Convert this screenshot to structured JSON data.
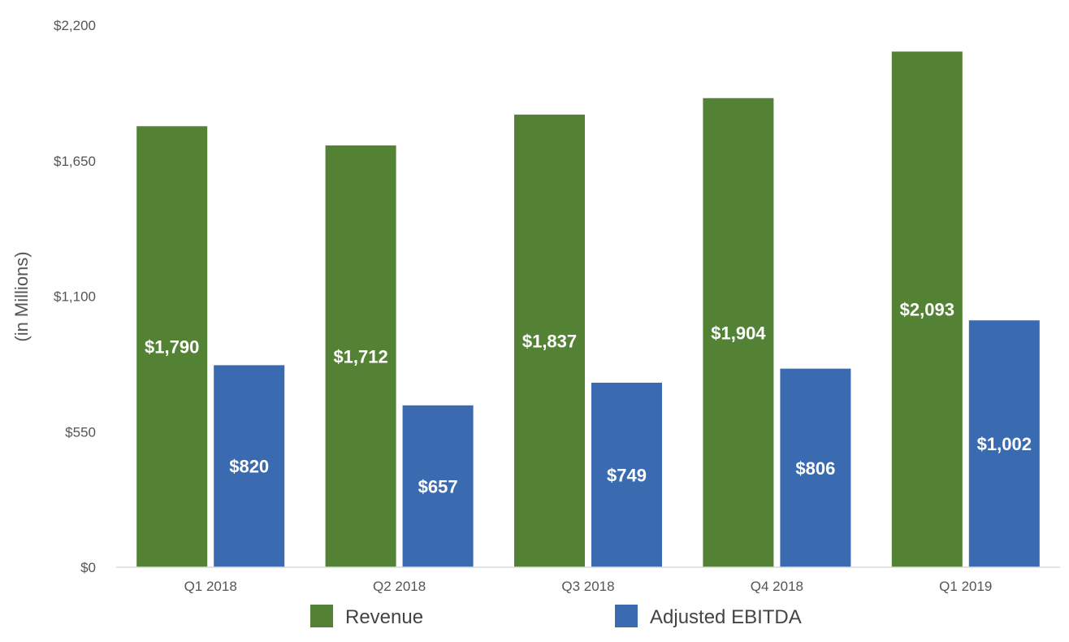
{
  "chart_data": {
    "type": "bar",
    "title": "",
    "xlabel": "",
    "ylabel": "(in Millions)",
    "categories": [
      "Q1 2018",
      "Q2 2018",
      "Q3 2018",
      "Q4 2018",
      "Q1 2019"
    ],
    "series": [
      {
        "name": "Revenue",
        "color": "#548235",
        "values": [
          1790,
          1712,
          1837,
          1904,
          2093
        ],
        "labels": [
          "$1,790",
          "$1,712",
          "$1,837",
          "$1,904",
          "$2,093"
        ]
      },
      {
        "name": "Adjusted EBITDA",
        "color": "#3a6bb0",
        "values": [
          820,
          657,
          749,
          806,
          1002
        ],
        "labels": [
          "$820",
          "$657",
          "$749",
          "$806",
          "$1,002"
        ]
      }
    ],
    "ylim": [
      0,
      2200
    ],
    "yticks": [
      0,
      550,
      1100,
      1650,
      2200
    ],
    "ytick_labels": [
      "$0",
      "$550",
      "$1,100",
      "$1,650",
      "$2,200"
    ],
    "grid": false,
    "legend_position": "bottom"
  }
}
